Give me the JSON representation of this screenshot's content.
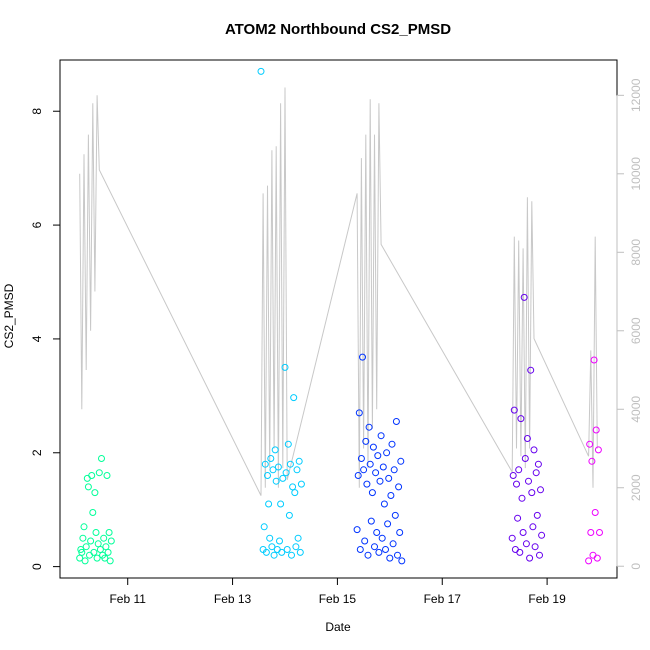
{
  "chart_data": {
    "type": "scatter",
    "title": "ATOM2 Northbound CS2_PMSD",
    "xlabel": "Date",
    "ylabel": "CS2_PMSD",
    "x_axis": {
      "type": "date",
      "range": [
        "2024-02-09 17:00",
        "2024-02-20 08:00"
      ],
      "ticks": [
        {
          "value": "2024-02-11",
          "label": "Feb 11"
        },
        {
          "value": "2024-02-13",
          "label": "Feb 13"
        },
        {
          "value": "2024-02-15",
          "label": "Feb 15"
        },
        {
          "value": "2024-02-17",
          "label": "Feb 17"
        },
        {
          "value": "2024-02-19",
          "label": "Feb 19"
        }
      ]
    },
    "y_axis": {
      "range": [
        -0.2,
        8.9
      ],
      "ticks": [
        0,
        2,
        4,
        6,
        8
      ]
    },
    "y2_axis": {
      "range": [
        -300,
        12900
      ],
      "ticks": [
        0,
        2000,
        4000,
        6000,
        8000,
        10000,
        12000
      ],
      "color": "#bfbfbf"
    },
    "grid": false,
    "colors": {
      "deployment_1": "#00ff99",
      "deployment_2": "#00ccff",
      "deployment_3": "#0033ff",
      "deployment_4": "#6600ee",
      "deployment_5": "#ee00ff",
      "line": "#c8c8c8"
    },
    "series": [
      {
        "type": "scatter",
        "color_key": "deployment_1",
        "points": [
          [
            "2024-02-10 02:00",
            0.15
          ],
          [
            "2024-02-10 02:30",
            0.3
          ],
          [
            "2024-02-10 03:00",
            0.25
          ],
          [
            "2024-02-10 03:30",
            0.5
          ],
          [
            "2024-02-10 04:00",
            0.7
          ],
          [
            "2024-02-10 04:30",
            0.1
          ],
          [
            "2024-02-10 05:00",
            0.35
          ],
          [
            "2024-02-10 05:30",
            1.55
          ],
          [
            "2024-02-10 06:00",
            1.4
          ],
          [
            "2024-02-10 06:30",
            0.2
          ],
          [
            "2024-02-10 07:00",
            0.45
          ],
          [
            "2024-02-10 07:30",
            1.6
          ],
          [
            "2024-02-10 08:00",
            0.95
          ],
          [
            "2024-02-10 08:30",
            0.25
          ],
          [
            "2024-02-10 09:00",
            1.3
          ],
          [
            "2024-02-10 09:30",
            0.6
          ],
          [
            "2024-02-10 10:00",
            0.15
          ],
          [
            "2024-02-10 10:30",
            0.4
          ],
          [
            "2024-02-10 11:00",
            1.65
          ],
          [
            "2024-02-10 11:30",
            0.3
          ],
          [
            "2024-02-10 12:00",
            1.9
          ],
          [
            "2024-02-10 12:30",
            0.2
          ],
          [
            "2024-02-10 13:00",
            0.5
          ],
          [
            "2024-02-10 13:30",
            0.15
          ],
          [
            "2024-02-10 14:00",
            0.35
          ],
          [
            "2024-02-10 14:30",
            1.6
          ],
          [
            "2024-02-10 15:00",
            0.25
          ],
          [
            "2024-02-10 15:30",
            0.6
          ],
          [
            "2024-02-10 16:00",
            0.1
          ],
          [
            "2024-02-10 16:30",
            0.45
          ]
        ]
      },
      {
        "type": "scatter",
        "color_key": "deployment_2",
        "points": [
          [
            "2024-02-13 13:00",
            8.7
          ],
          [
            "2024-02-13 14:00",
            0.3
          ],
          [
            "2024-02-13 14:30",
            0.7
          ],
          [
            "2024-02-13 15:00",
            1.8
          ],
          [
            "2024-02-13 15:30",
            0.25
          ],
          [
            "2024-02-13 16:00",
            1.6
          ],
          [
            "2024-02-13 16:30",
            1.1
          ],
          [
            "2024-02-13 17:00",
            0.5
          ],
          [
            "2024-02-13 17:30",
            1.9
          ],
          [
            "2024-02-13 18:00",
            0.35
          ],
          [
            "2024-02-13 18:30",
            1.7
          ],
          [
            "2024-02-13 19:00",
            0.2
          ],
          [
            "2024-02-13 19:30",
            2.05
          ],
          [
            "2024-02-13 20:00",
            1.5
          ],
          [
            "2024-02-13 20:30",
            0.3
          ],
          [
            "2024-02-13 21:00",
            1.75
          ],
          [
            "2024-02-13 21:30",
            0.45
          ],
          [
            "2024-02-13 22:00",
            1.1
          ],
          [
            "2024-02-13 22:30",
            0.25
          ],
          [
            "2024-02-13 23:00",
            1.55
          ],
          [
            "2024-02-14 00:00",
            3.5
          ],
          [
            "2024-02-14 00:30",
            1.65
          ],
          [
            "2024-02-14 01:00",
            0.3
          ],
          [
            "2024-02-14 01:30",
            2.15
          ],
          [
            "2024-02-14 02:00",
            0.9
          ],
          [
            "2024-02-14 02:30",
            1.8
          ],
          [
            "2024-02-14 03:00",
            0.2
          ],
          [
            "2024-02-14 03:30",
            1.4
          ],
          [
            "2024-02-14 04:00",
            2.97
          ],
          [
            "2024-02-14 04:30",
            1.3
          ],
          [
            "2024-02-14 05:00",
            0.35
          ],
          [
            "2024-02-14 05:30",
            1.7
          ],
          [
            "2024-02-14 06:00",
            0.5
          ],
          [
            "2024-02-14 06:30",
            1.85
          ],
          [
            "2024-02-14 07:00",
            0.25
          ],
          [
            "2024-02-14 07:30",
            1.45
          ]
        ]
      },
      {
        "type": "scatter",
        "color_key": "deployment_3",
        "points": [
          [
            "2024-02-15 09:00",
            0.65
          ],
          [
            "2024-02-15 09:30",
            1.6
          ],
          [
            "2024-02-15 10:00",
            2.7
          ],
          [
            "2024-02-15 10:30",
            0.3
          ],
          [
            "2024-02-15 11:00",
            1.9
          ],
          [
            "2024-02-15 11:30",
            3.68
          ],
          [
            "2024-02-15 12:00",
            1.7
          ],
          [
            "2024-02-15 12:30",
            0.45
          ],
          [
            "2024-02-15 13:00",
            2.2
          ],
          [
            "2024-02-15 13:30",
            1.45
          ],
          [
            "2024-02-15 14:00",
            0.2
          ],
          [
            "2024-02-15 14:30",
            2.45
          ],
          [
            "2024-02-15 15:00",
            1.8
          ],
          [
            "2024-02-15 15:30",
            0.8
          ],
          [
            "2024-02-15 16:00",
            1.3
          ],
          [
            "2024-02-15 16:30",
            2.1
          ],
          [
            "2024-02-15 17:00",
            0.35
          ],
          [
            "2024-02-15 17:30",
            1.65
          ],
          [
            "2024-02-15 18:00",
            0.6
          ],
          [
            "2024-02-15 18:30",
            1.95
          ],
          [
            "2024-02-15 19:00",
            0.25
          ],
          [
            "2024-02-15 19:30",
            1.5
          ],
          [
            "2024-02-15 20:00",
            2.3
          ],
          [
            "2024-02-15 20:30",
            0.5
          ],
          [
            "2024-02-15 21:00",
            1.75
          ],
          [
            "2024-02-15 21:30",
            1.1
          ],
          [
            "2024-02-15 22:00",
            0.3
          ],
          [
            "2024-02-15 22:30",
            2.0
          ],
          [
            "2024-02-15 23:00",
            0.75
          ],
          [
            "2024-02-15 23:30",
            1.55
          ],
          [
            "2024-02-16 00:00",
            0.15
          ],
          [
            "2024-02-16 00:30",
            1.25
          ],
          [
            "2024-02-16 01:00",
            2.15
          ],
          [
            "2024-02-16 01:30",
            0.4
          ],
          [
            "2024-02-16 02:00",
            1.7
          ],
          [
            "2024-02-16 02:30",
            0.9
          ],
          [
            "2024-02-16 03:00",
            2.55
          ],
          [
            "2024-02-16 03:30",
            0.2
          ],
          [
            "2024-02-16 04:00",
            1.4
          ],
          [
            "2024-02-16 04:30",
            0.6
          ],
          [
            "2024-02-16 05:00",
            1.85
          ],
          [
            "2024-02-16 05:30",
            0.1
          ]
        ]
      },
      {
        "type": "scatter",
        "color_key": "deployment_4",
        "points": [
          [
            "2024-02-18 08:00",
            0.5
          ],
          [
            "2024-02-18 08:30",
            1.6
          ],
          [
            "2024-02-18 09:00",
            2.75
          ],
          [
            "2024-02-18 09:30",
            0.3
          ],
          [
            "2024-02-18 10:00",
            1.45
          ],
          [
            "2024-02-18 10:30",
            0.85
          ],
          [
            "2024-02-18 11:00",
            1.7
          ],
          [
            "2024-02-18 11:30",
            0.25
          ],
          [
            "2024-02-18 12:00",
            2.6
          ],
          [
            "2024-02-18 12:30",
            1.2
          ],
          [
            "2024-02-18 13:00",
            0.6
          ],
          [
            "2024-02-18 13:30",
            4.73
          ],
          [
            "2024-02-18 14:00",
            1.9
          ],
          [
            "2024-02-18 14:30",
            0.4
          ],
          [
            "2024-02-18 15:00",
            2.25
          ],
          [
            "2024-02-18 15:30",
            1.5
          ],
          [
            "2024-02-18 16:00",
            0.15
          ],
          [
            "2024-02-18 16:30",
            3.45
          ],
          [
            "2024-02-18 17:00",
            1.3
          ],
          [
            "2024-02-18 17:30",
            0.7
          ],
          [
            "2024-02-18 18:00",
            2.05
          ],
          [
            "2024-02-18 18:30",
            0.35
          ],
          [
            "2024-02-18 19:00",
            1.65
          ],
          [
            "2024-02-18 19:30",
            0.9
          ],
          [
            "2024-02-18 20:00",
            1.8
          ],
          [
            "2024-02-18 20:30",
            0.2
          ],
          [
            "2024-02-18 21:00",
            1.35
          ],
          [
            "2024-02-18 21:30",
            0.55
          ]
        ]
      },
      {
        "type": "scatter",
        "color_key": "deployment_5",
        "points": [
          [
            "2024-02-19 19:00",
            0.1
          ],
          [
            "2024-02-19 19:30",
            2.15
          ],
          [
            "2024-02-19 20:00",
            0.6
          ],
          [
            "2024-02-19 20:30",
            1.85
          ],
          [
            "2024-02-19 21:00",
            0.2
          ],
          [
            "2024-02-19 21:30",
            3.63
          ],
          [
            "2024-02-19 22:00",
            0.95
          ],
          [
            "2024-02-19 22:30",
            2.4
          ],
          [
            "2024-02-19 23:00",
            0.15
          ],
          [
            "2024-02-19 23:30",
            2.05
          ],
          [
            "2024-02-20 00:00",
            0.6
          ]
        ]
      },
      {
        "type": "line",
        "axis": "y2",
        "color_key": "line",
        "points": [
          [
            "2024-02-10 02:00",
            10000
          ],
          [
            "2024-02-10 03:00",
            4000
          ],
          [
            "2024-02-10 04:00",
            10500
          ],
          [
            "2024-02-10 05:00",
            5000
          ],
          [
            "2024-02-10 06:00",
            11000
          ],
          [
            "2024-02-10 07:00",
            6000
          ],
          [
            "2024-02-10 08:00",
            11800
          ],
          [
            "2024-02-10 09:00",
            7000
          ],
          [
            "2024-02-10 10:00",
            12000
          ],
          [
            "2024-02-10 11:00",
            10100
          ],
          [
            "2024-02-13 13:00",
            1800
          ],
          [
            "2024-02-13 14:00",
            9500
          ],
          [
            "2024-02-13 15:00",
            2000
          ],
          [
            "2024-02-13 16:00",
            9700
          ],
          [
            "2024-02-13 17:00",
            2500
          ],
          [
            "2024-02-13 18:00",
            10600
          ],
          [
            "2024-02-13 19:00",
            3000
          ],
          [
            "2024-02-13 20:00",
            10700
          ],
          [
            "2024-02-13 21:00",
            2000
          ],
          [
            "2024-02-13 22:00",
            11800
          ],
          [
            "2024-02-13 23:00",
            2500
          ],
          [
            "2024-02-14 00:00",
            12200
          ],
          [
            "2024-02-14 01:00",
            2200
          ],
          [
            "2024-02-15 09:00",
            9500
          ],
          [
            "2024-02-15 10:00",
            2000
          ],
          [
            "2024-02-15 11:00",
            10400
          ],
          [
            "2024-02-15 12:00",
            3000
          ],
          [
            "2024-02-15 13:00",
            11000
          ],
          [
            "2024-02-15 14:00",
            2500
          ],
          [
            "2024-02-15 15:00",
            11900
          ],
          [
            "2024-02-15 16:00",
            3500
          ],
          [
            "2024-02-15 17:00",
            11000
          ],
          [
            "2024-02-15 18:00",
            4000
          ],
          [
            "2024-02-15 19:00",
            11800
          ],
          [
            "2024-02-15 20:00",
            8200
          ],
          [
            "2024-02-18 08:00",
            2400
          ],
          [
            "2024-02-18 09:00",
            8400
          ],
          [
            "2024-02-18 10:00",
            3000
          ],
          [
            "2024-02-18 11:00",
            8300
          ],
          [
            "2024-02-18 12:00",
            2800
          ],
          [
            "2024-02-18 13:00",
            8100
          ],
          [
            "2024-02-18 14:00",
            2500
          ],
          [
            "2024-02-18 15:00",
            9400
          ],
          [
            "2024-02-18 16:00",
            3000
          ],
          [
            "2024-02-18 17:00",
            9300
          ],
          [
            "2024-02-18 18:00",
            5800
          ],
          [
            "2024-02-19 19:00",
            2800
          ],
          [
            "2024-02-19 20:00",
            5500
          ],
          [
            "2024-02-19 21:00",
            2000
          ],
          [
            "2024-02-19 22:00",
            8400
          ],
          [
            "2024-02-19 23:00",
            3000
          ]
        ]
      }
    ]
  }
}
